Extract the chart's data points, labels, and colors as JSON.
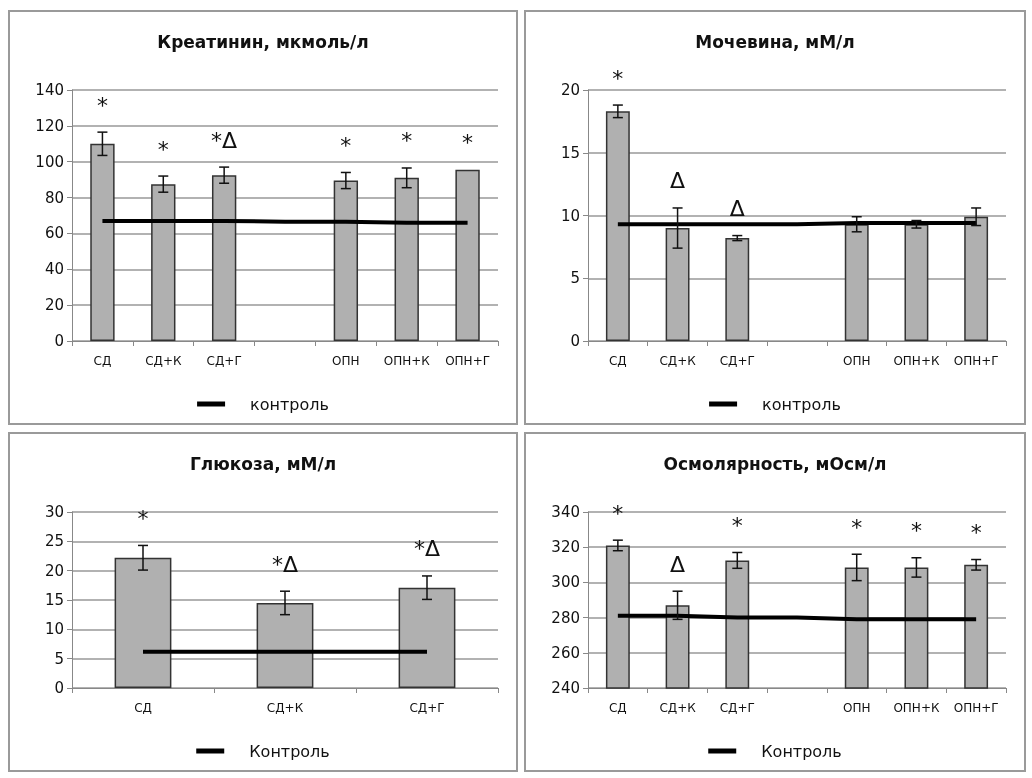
{
  "chart_data": [
    {
      "type": "bar",
      "title": "Креатинин, мкмоль/л",
      "categories": [
        "СД",
        "СД+К",
        "СД+Г",
        null,
        "ОПН",
        "ОПН+К",
        "ОПН+Г"
      ],
      "ylim": [
        0,
        140
      ],
      "yticks": [
        0,
        20,
        40,
        60,
        80,
        100,
        120,
        140
      ],
      "grid": "y",
      "legend": "bottom",
      "marker": "none",
      "line_style": "solid",
      "series": [
        {
          "color": "#b0b0b0",
          "values": [
            110,
            87.5,
            92.5,
            null,
            89.5,
            91,
            95.5
          ],
          "errors": [
            6.5,
            4.5,
            4.5,
            null,
            4.5,
            5.5,
            null
          ]
        },
        {
          "type": "line",
          "name": "контроль",
          "color": "#000000",
          "values": [
            67,
            67,
            67,
            66.5,
            66.5,
            66,
            66
          ]
        }
      ],
      "annotations": [
        {
          "text": "*",
          "x": "СД",
          "y": 110
        },
        {
          "text": "*",
          "x": "СД+К",
          "y": 87.5
        },
        {
          "text": "*Δ",
          "x": "СД+Г",
          "y": 92.5
        },
        {
          "text": "*",
          "x": "ОПН",
          "y": 89.5
        },
        {
          "text": "*",
          "x": "ОПН+К",
          "y": 91
        },
        {
          "text": "*",
          "x": "ОПН+Г",
          "y": 95.5
        }
      ]
    },
    {
      "type": "bar",
      "title": "Мочевина, мМ/л",
      "categories": [
        "СД",
        "СД+К",
        "СД+Г",
        null,
        "ОПН",
        "ОПН+К",
        "ОПН+Г"
      ],
      "ylim": [
        0,
        20
      ],
      "yticks": [
        0,
        5,
        10,
        15,
        20
      ],
      "grid": "y",
      "legend": "bottom",
      "marker": "none",
      "line_style": "solid",
      "series": [
        {
          "color": "#b0b0b0",
          "values": [
            18.3,
            9,
            8.2,
            null,
            9.3,
            9.3,
            9.9
          ],
          "errors": [
            0.5,
            1.6,
            0.2,
            null,
            0.6,
            0.3,
            0.7
          ]
        },
        {
          "type": "line",
          "name": "контроль",
          "color": "#000000",
          "values": [
            9.3,
            9.3,
            9.3,
            9.3,
            9.4,
            9.4,
            9.4
          ]
        }
      ],
      "annotations": [
        {
          "text": "*",
          "x": "СД",
          "y": 18.3
        },
        {
          "text": "Δ",
          "x": "СД+К",
          "y": 9
        },
        {
          "text": "Δ",
          "x": "СД+Г",
          "y": 8.2
        }
      ]
    },
    {
      "type": "bar",
      "title": "Глюкоза, мМ/л",
      "categories": [
        "СД",
        "СД+К",
        "СД+Г"
      ],
      "ylim": [
        0,
        30
      ],
      "yticks": [
        0,
        5,
        10,
        15,
        20,
        25,
        30
      ],
      "grid": "y",
      "legend": "bottom",
      "marker": "none",
      "line_style": "solid",
      "series": [
        {
          "color": "#b0b0b0",
          "values": [
            22.2,
            14.5,
            17.1
          ],
          "errors": [
            2.1,
            2,
            2
          ]
        },
        {
          "type": "line",
          "name": "Контроль",
          "color": "#000000",
          "values": [
            6.2,
            6.2,
            6.2
          ]
        }
      ],
      "annotations": [
        {
          "text": "*",
          "x": "СД",
          "y": 22.2
        },
        {
          "text": "*Δ",
          "x": "СД+К",
          "y": 14.5
        },
        {
          "text": "*Δ",
          "x": "СД+Г",
          "y": 17.1
        }
      ]
    },
    {
      "type": "bar",
      "title": "Осмолярность, мОсм/л",
      "categories": [
        "СД",
        "СД+К",
        "СД+Г",
        null,
        "ОПН",
        "ОПН+К",
        "ОПН+Г"
      ],
      "ylim": [
        240,
        340
      ],
      "yticks": [
        240,
        260,
        280,
        300,
        320,
        340
      ],
      "grid": "y",
      "legend": "bottom",
      "marker": "none",
      "line_style": "solid",
      "series": [
        {
          "color": "#b0b0b0",
          "values": [
            321,
            287,
            312.5,
            null,
            308.5,
            308.5,
            310
          ],
          "errors": [
            3,
            8,
            4.5,
            null,
            7.5,
            5.5,
            3
          ]
        },
        {
          "type": "line",
          "name": "Контроль",
          "color": "#000000",
          "values": [
            281,
            281,
            280,
            280,
            279,
            279,
            279
          ]
        }
      ],
      "annotations": [
        {
          "text": "*",
          "x": "СД",
          "y": 321
        },
        {
          "text": "Δ",
          "x": "СД+К",
          "y": 287
        },
        {
          "text": "*",
          "x": "СД+Г",
          "y": 312.5
        },
        {
          "text": "*",
          "x": "ОПН",
          "y": 308.5
        },
        {
          "text": "*",
          "x": "ОПН+К",
          "y": 308.5
        },
        {
          "text": "*",
          "x": "ОПН+Г",
          "y": 310
        }
      ]
    }
  ]
}
